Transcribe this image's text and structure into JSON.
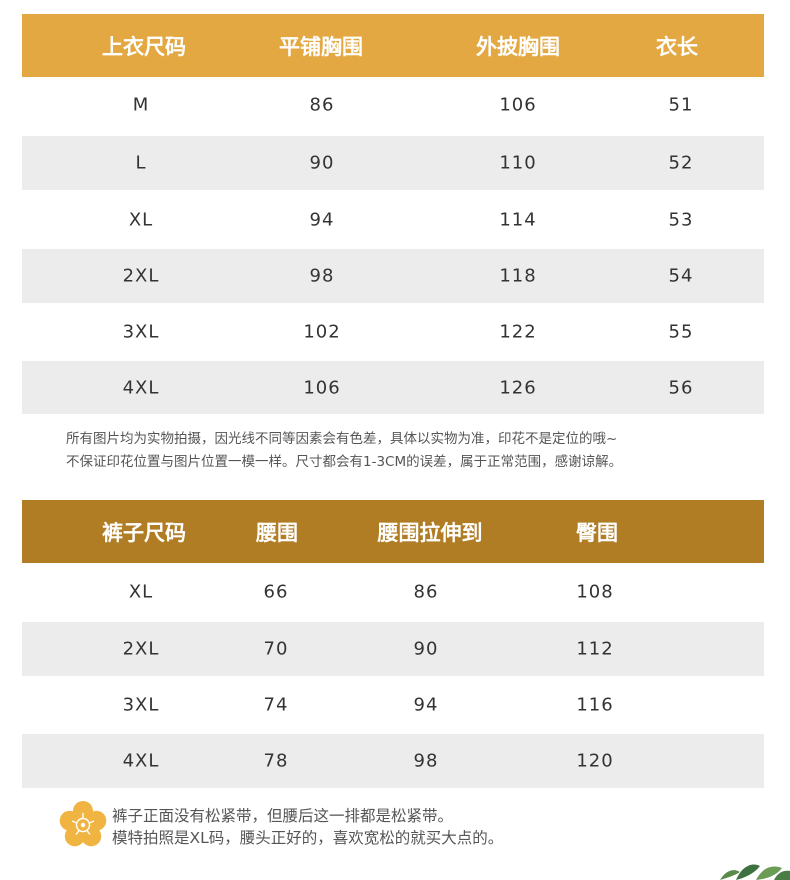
{
  "top_table": {
    "header_color": "#e3a841",
    "headers": [
      "上衣尺码",
      "平铺胸围",
      "外披胸围",
      "衣长"
    ],
    "rows": [
      [
        "M",
        "86",
        "106",
        "51"
      ],
      [
        "L",
        "90",
        "110",
        "52"
      ],
      [
        "XL",
        "94",
        "114",
        "53"
      ],
      [
        "2XL",
        "98",
        "118",
        "54"
      ],
      [
        "3XL",
        "102",
        "122",
        "55"
      ],
      [
        "4XL",
        "106",
        "126",
        "56"
      ]
    ]
  },
  "top_note": {
    "line1": "所有图片均为实物拍摄，因光线不同等因素会有色差，具体以实物为准，印花不是定位的哦~",
    "line2": "不保证印花位置与图片位置一模一样。尺寸都会有1-3CM的误差，属于正常范围，感谢谅解。"
  },
  "bottom_table": {
    "header_color": "#b07d25",
    "headers": [
      "裤子尺码",
      "腰围",
      "腰围拉伸到",
      "臀围"
    ],
    "rows": [
      [
        "XL",
        "66",
        "86",
        "108"
      ],
      [
        "2XL",
        "70",
        "90",
        "112"
      ],
      [
        "3XL",
        "74",
        "94",
        "116"
      ],
      [
        "4XL",
        "78",
        "98",
        "120"
      ]
    ]
  },
  "bottom_note": {
    "line1": "裤子正面没有松紧带，但腰后这一排都是松紧带。",
    "line2": "模特拍照是XL码，腰头正好的，喜欢宽松的就买大点的。"
  },
  "icons": {
    "flower": "flower-icon",
    "leaf": "leaf-decoration-icon"
  },
  "colors": {
    "row_alt": "#ececec",
    "flower": "#f0b443"
  }
}
